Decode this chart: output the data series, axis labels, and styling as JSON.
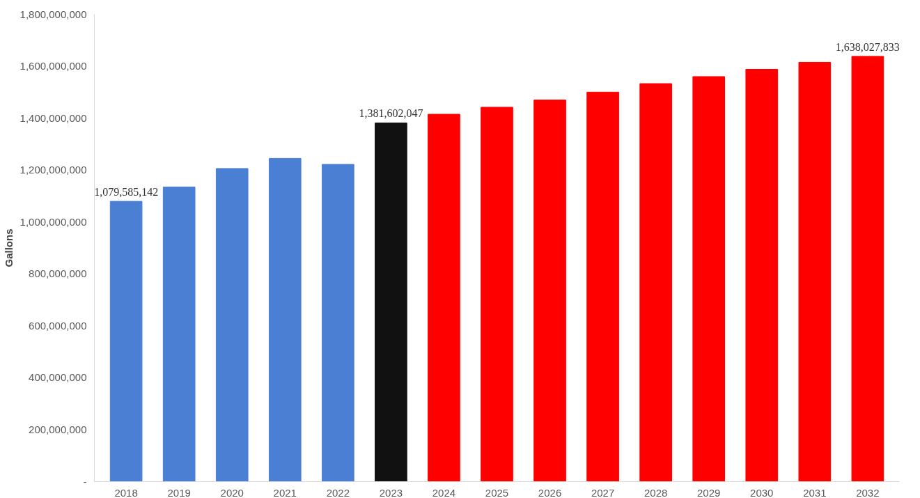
{
  "chart_data": {
    "type": "bar",
    "ylabel": "Gallons",
    "categories": [
      "2018",
      "2019",
      "2020",
      "2021",
      "2022",
      "2023",
      "2024",
      "2025",
      "2026",
      "2027",
      "2028",
      "2029",
      "2030",
      "2031",
      "2032"
    ],
    "values": [
      1079585142,
      1135000000,
      1206000000,
      1245000000,
      1222000000,
      1381602047,
      1415000000,
      1442000000,
      1470000000,
      1500000000,
      1533000000,
      1560000000,
      1588000000,
      1615000000,
      1638027833
    ],
    "colors": [
      "#4a7fd4",
      "#4a7fd4",
      "#4a7fd4",
      "#4a7fd4",
      "#4a7fd4",
      "#111111",
      "#ff0000",
      "#ff0000",
      "#ff0000",
      "#ff0000",
      "#ff0000",
      "#ff0000",
      "#ff0000",
      "#ff0000",
      "#ff0000"
    ],
    "value_labels": [
      "1,079,585,142",
      null,
      null,
      null,
      null,
      "1,381,602,047",
      null,
      null,
      null,
      null,
      null,
      null,
      null,
      null,
      "1,638,027,833"
    ],
    "ylim": [
      0,
      1800000000
    ],
    "yticks": [
      {
        "value": 0,
        "label": "-"
      },
      {
        "value": 200000000,
        "label": "200,000,000"
      },
      {
        "value": 400000000,
        "label": "400,000,000"
      },
      {
        "value": 600000000,
        "label": "600,000,000"
      },
      {
        "value": 800000000,
        "label": "800,000,000"
      },
      {
        "value": 1000000000,
        "label": "1,000,000,000"
      },
      {
        "value": 1200000000,
        "label": "1,200,000,000"
      },
      {
        "value": 1400000000,
        "label": "1,400,000,000"
      },
      {
        "value": 1600000000,
        "label": "1,600,000,000"
      },
      {
        "value": 1800000000,
        "label": "1,800,000,000"
      }
    ],
    "grid": false
  }
}
